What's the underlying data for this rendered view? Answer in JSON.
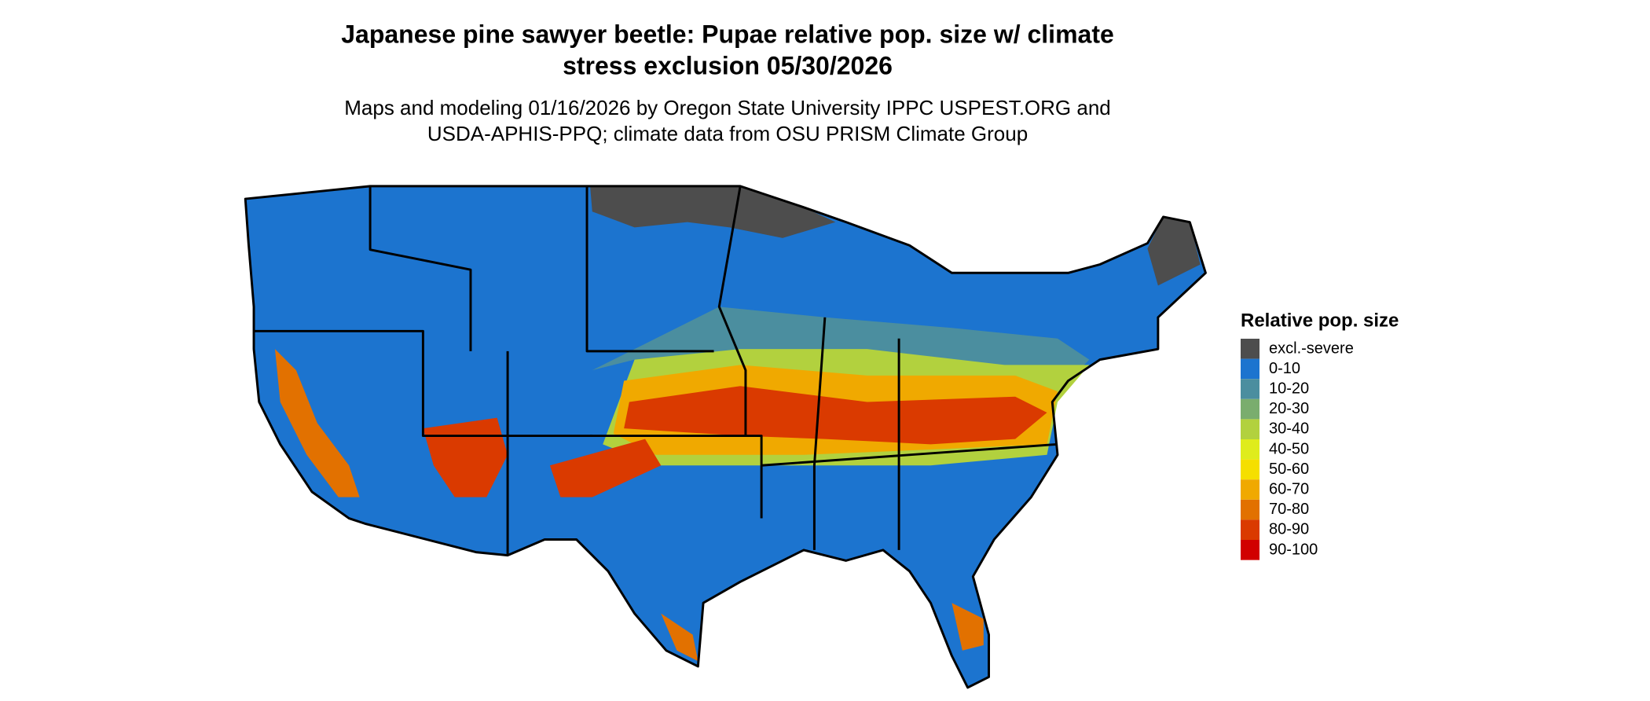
{
  "header": {
    "title_lines": [
      "Japanese pine sawyer beetle: Pupae relative pop. size w/ climate",
      "stress exclusion 05/30/2026"
    ],
    "subtitle_lines": [
      "Maps and modeling 01/16/2026 by Oregon State University IPPC USPEST.ORG and",
      "USDA-APHIS-PPQ; climate data from OSU PRISM Climate Group"
    ]
  },
  "legend": {
    "title": "Relative pop. size",
    "items": [
      {
        "label": "excl.-severe",
        "color": "#4d4d4d"
      },
      {
        "label": "0-10",
        "color": "#1c74cf"
      },
      {
        "label": "10-20",
        "color": "#4b8e9f"
      },
      {
        "label": "20-30",
        "color": "#7aad6e"
      },
      {
        "label": "30-40",
        "color": "#b2d13e"
      },
      {
        "label": "40-50",
        "color": "#dfec1c"
      },
      {
        "label": "50-60",
        "color": "#f5df00"
      },
      {
        "label": "60-70",
        "color": "#f0a900"
      },
      {
        "label": "70-80",
        "color": "#e27100"
      },
      {
        "label": "80-90",
        "color": "#da3a00"
      },
      {
        "label": "90-100",
        "color": "#d10000"
      }
    ]
  }
}
